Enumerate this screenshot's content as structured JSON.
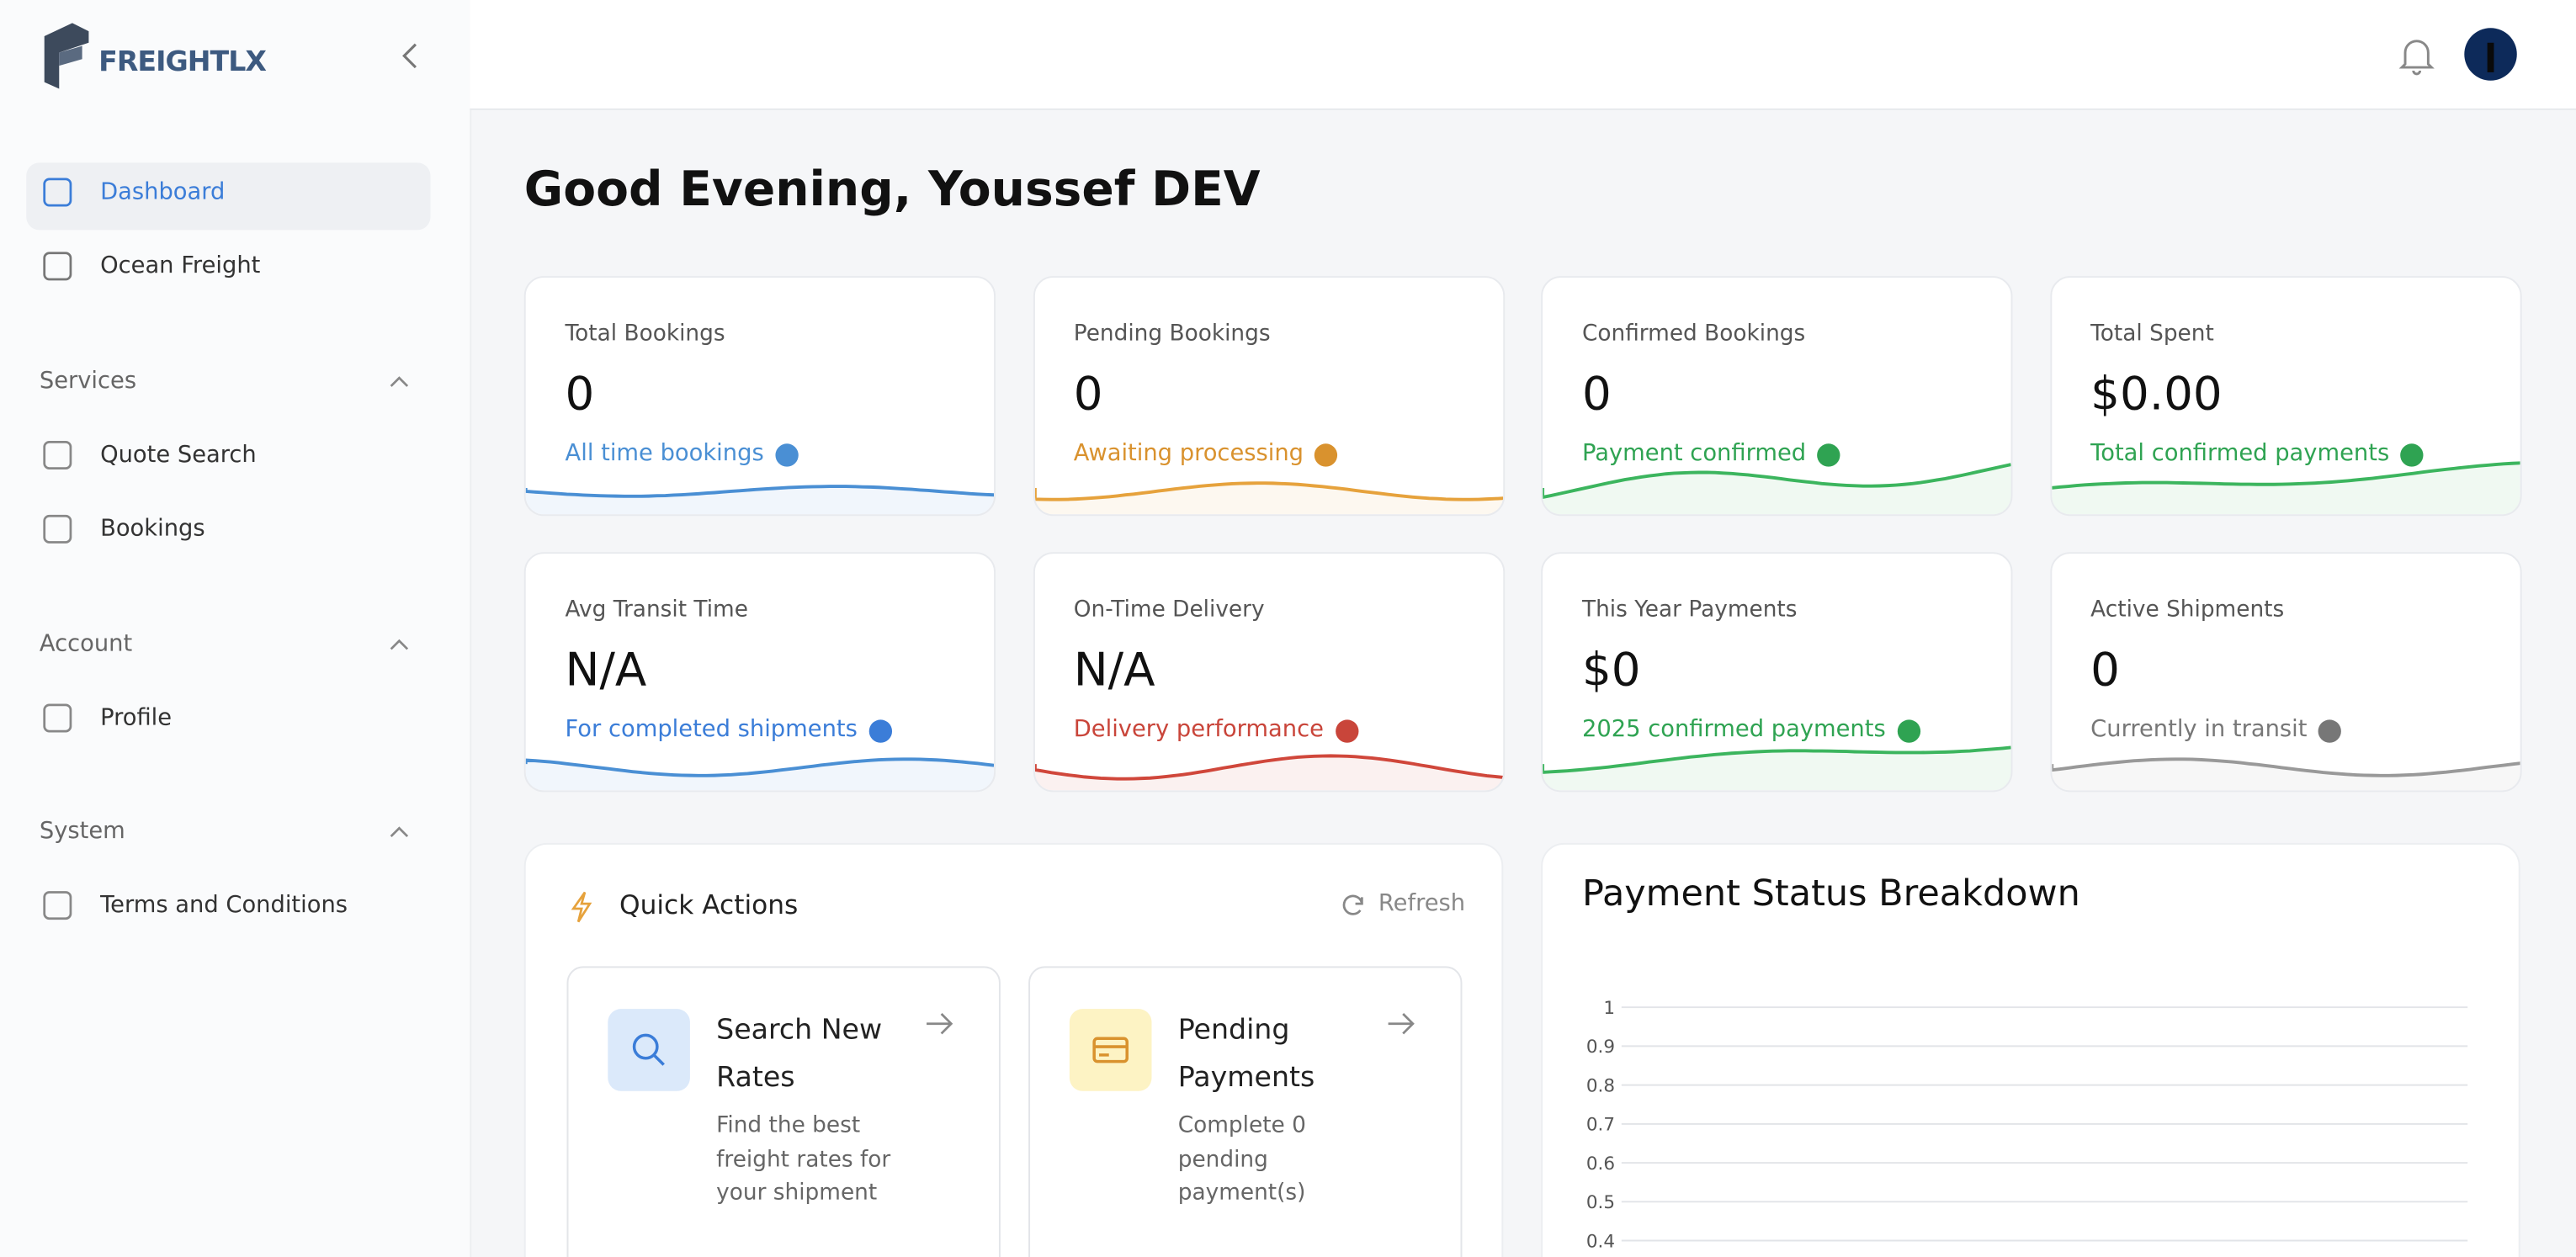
{
  "brand": "FREIGHTLX",
  "nav": {
    "main": [
      "Dashboard",
      "Ocean Freight"
    ],
    "sections": [
      {
        "title": "Services",
        "items": [
          "Quote Search",
          "Bookings"
        ]
      },
      {
        "title": "Account",
        "items": [
          "Profile"
        ]
      },
      {
        "title": "System",
        "items": [
          "Terms and Conditions"
        ]
      }
    ]
  },
  "greeting": "Good Evening, Youssef DEV",
  "stats": [
    {
      "label": "Total Bookings",
      "value": "0",
      "note": "All time bookings"
    },
    {
      "label": "Pending Bookings",
      "value": "0",
      "note": "Awaiting processing"
    },
    {
      "label": "Confirmed Bookings",
      "value": "0",
      "note": "Payment confirmed"
    },
    {
      "label": "Total Spent",
      "value": "$0.00",
      "note": "Total confirmed payments"
    },
    {
      "label": "Avg Transit Time",
      "value": "N/A",
      "note": "For completed shipments"
    },
    {
      "label": "On-Time Delivery",
      "value": "N/A",
      "note": "Delivery performance"
    },
    {
      "label": "This Year Payments",
      "value": "$0",
      "note": "2025 confirmed payments"
    },
    {
      "label": "Active Shipments",
      "value": "0",
      "note": "Currently in transit"
    }
  ],
  "quick_actions": {
    "title": "Quick Actions",
    "refresh": "Refresh",
    "items": [
      {
        "title": "Search New Rates",
        "description": "Find the best freight rates for your shipment"
      },
      {
        "title": "Pending Payments",
        "description": "Complete 0 pending payment(s)"
      }
    ]
  },
  "payment_chart": {
    "title": "Payment Status Breakdown",
    "yticks": [
      1,
      0.9,
      0.8,
      0.7,
      0.6,
      0.5,
      0.4
    ]
  }
}
